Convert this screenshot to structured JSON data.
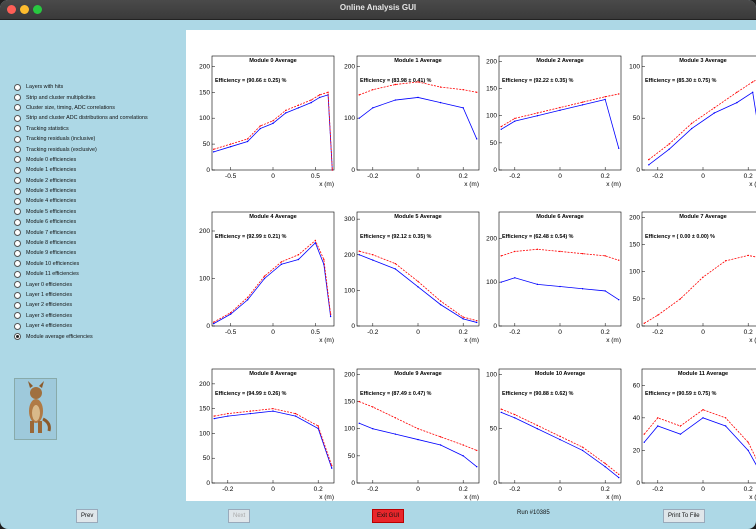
{
  "window": {
    "title": "Online Analysis GUI"
  },
  "sidebar": {
    "items": [
      {
        "label": "Layers with hits",
        "selected": false
      },
      {
        "label": "Strip and cluster multiplicities",
        "selected": false
      },
      {
        "label": "Cluster size, timing, ADC correlations",
        "selected": false
      },
      {
        "label": "Strip and cluster ADC distributions and correlations",
        "selected": false
      },
      {
        "label": "Tracking statistics",
        "selected": false
      },
      {
        "label": "Tracking residuals (inclusive)",
        "selected": false
      },
      {
        "label": "Tracking residuals (exclusive)",
        "selected": false
      },
      {
        "label": "Module 0 efficiencies",
        "selected": false
      },
      {
        "label": "Module 1 efficiencies",
        "selected": false
      },
      {
        "label": "Module 2 efficiencies",
        "selected": false
      },
      {
        "label": "Module 3 efficiencies",
        "selected": false
      },
      {
        "label": "Module 4 efficiencies",
        "selected": false
      },
      {
        "label": "Module 5 efficiencies",
        "selected": false
      },
      {
        "label": "Module 6 efficiencies",
        "selected": false
      },
      {
        "label": "Module 7 efficiencies",
        "selected": false
      },
      {
        "label": "Module 8 efficiencies",
        "selected": false
      },
      {
        "label": "Module 9 efficiencies",
        "selected": false
      },
      {
        "label": "Module 10 efficiencies",
        "selected": false
      },
      {
        "label": "Module 11 efficiencies",
        "selected": false
      },
      {
        "label": "Layer 0 efficiencies",
        "selected": false
      },
      {
        "label": "Layer 1 efficiencies",
        "selected": false
      },
      {
        "label": "Layer 2 efficiencies",
        "selected": false
      },
      {
        "label": "Layer 3 efficiencies",
        "selected": false
      },
      {
        "label": "Layer 4 efficiencies",
        "selected": false
      },
      {
        "label": "Module average efficiencies",
        "selected": true
      }
    ]
  },
  "buttons": {
    "prev": "Prev",
    "next": "Next",
    "exit": "Exit GUI",
    "print": "Print To File"
  },
  "status": {
    "run": "Run #10385"
  },
  "colors": {
    "blue_series": "#0000ff",
    "red_series": "#ff0000",
    "exit_button": "#e8262b"
  },
  "chart_data": [
    {
      "type": "line",
      "title": "Module 0 Average",
      "annotation": "Efficiency = (90.66 ± 0.25) %",
      "xlabel": "x (m)",
      "xlim": [
        -0.72,
        0.72
      ],
      "ylim": [
        0,
        220
      ],
      "xticks": [
        -0.5,
        0,
        0.5
      ],
      "yticks": [
        0,
        50,
        100,
        150,
        200
      ],
      "series": [
        {
          "color": "#0000ff",
          "x": [
            -0.7,
            -0.5,
            -0.3,
            -0.15,
            0,
            0.15,
            0.3,
            0.45,
            0.55,
            0.65,
            0.7
          ],
          "y": [
            35,
            45,
            55,
            80,
            90,
            110,
            120,
            130,
            140,
            145,
            0
          ]
        },
        {
          "color": "#ff0000",
          "x": [
            -0.7,
            -0.5,
            -0.3,
            -0.15,
            0,
            0.15,
            0.3,
            0.45,
            0.55,
            0.65,
            0.7
          ],
          "y": [
            40,
            50,
            60,
            85,
            95,
            115,
            125,
            135,
            145,
            150,
            0
          ]
        }
      ]
    },
    {
      "type": "line",
      "title": "Module 1 Average",
      "annotation": "Efficiency = (83.98 ± 0.41) %",
      "xlabel": "x (m)",
      "xlim": [
        -0.27,
        0.27
      ],
      "ylim": [
        0,
        220
      ],
      "xticks": [
        -0.2,
        0,
        0.2
      ],
      "yticks": [
        0,
        100,
        200
      ],
      "series": [
        {
          "color": "#0000ff",
          "x": [
            -0.26,
            -0.2,
            -0.1,
            0,
            0.1,
            0.2,
            0.26
          ],
          "y": [
            100,
            120,
            135,
            140,
            130,
            120,
            60
          ]
        },
        {
          "color": "#ff0000",
          "x": [
            -0.26,
            -0.2,
            -0.1,
            0,
            0.1,
            0.2,
            0.26
          ],
          "y": [
            145,
            155,
            165,
            170,
            160,
            155,
            150
          ]
        }
      ]
    },
    {
      "type": "line",
      "title": "Module 2 Average",
      "annotation": "Efficiency = (92.22 ± 0.35) %",
      "xlabel": "x (m)",
      "xlim": [
        -0.27,
        0.27
      ],
      "ylim": [
        0,
        210
      ],
      "xticks": [
        -0.2,
        0,
        0.2
      ],
      "yticks": [
        0,
        50,
        100,
        150,
        200
      ],
      "series": [
        {
          "color": "#0000ff",
          "x": [
            -0.26,
            -0.2,
            -0.1,
            0,
            0.1,
            0.2,
            0.26
          ],
          "y": [
            75,
            90,
            100,
            110,
            120,
            130,
            40
          ]
        },
        {
          "color": "#ff0000",
          "x": [
            -0.26,
            -0.2,
            -0.1,
            0,
            0.1,
            0.2,
            0.26
          ],
          "y": [
            80,
            95,
            105,
            115,
            125,
            135,
            140
          ]
        }
      ]
    },
    {
      "type": "line",
      "title": "Module 3 Average",
      "annotation": "Efficiency = (85.30 ± 0.75) %",
      "xlabel": "x (m)",
      "xlim": [
        -0.27,
        0.27
      ],
      "ylim": [
        0,
        110
      ],
      "xticks": [
        -0.2,
        0,
        0.2
      ],
      "yticks": [
        0,
        50,
        100
      ],
      "series": [
        {
          "color": "#0000ff",
          "x": [
            -0.24,
            -0.15,
            -0.05,
            0.05,
            0.15,
            0.22,
            0.26
          ],
          "y": [
            5,
            20,
            40,
            55,
            65,
            75,
            20
          ]
        },
        {
          "color": "#ff0000",
          "x": [
            -0.24,
            -0.15,
            -0.05,
            0.05,
            0.15,
            0.22,
            0.26
          ],
          "y": [
            10,
            25,
            45,
            60,
            75,
            85,
            90
          ]
        }
      ]
    },
    {
      "type": "line",
      "title": "Module 4 Average",
      "annotation": "Efficiency = (92.99 ± 0.21) %",
      "xlabel": "x (m)",
      "xlim": [
        -0.72,
        0.72
      ],
      "ylim": [
        0,
        240
      ],
      "xticks": [
        -0.5,
        0,
        0.5
      ],
      "yticks": [
        0,
        100,
        200
      ],
      "series": [
        {
          "color": "#0000ff",
          "x": [
            -0.7,
            -0.5,
            -0.3,
            -0.1,
            0.1,
            0.3,
            0.5,
            0.6,
            0.68
          ],
          "y": [
            5,
            25,
            55,
            100,
            130,
            140,
            175,
            130,
            20
          ]
        },
        {
          "color": "#ff0000",
          "x": [
            -0.7,
            -0.5,
            -0.3,
            -0.1,
            0.1,
            0.3,
            0.5,
            0.6,
            0.68
          ],
          "y": [
            8,
            28,
            60,
            105,
            135,
            150,
            180,
            140,
            25
          ]
        }
      ]
    },
    {
      "type": "line",
      "title": "Module 5 Average",
      "annotation": "Efficiency = (92.12 ± 0.35) %",
      "xlabel": "x (m)",
      "xlim": [
        -0.27,
        0.27
      ],
      "ylim": [
        0,
        320
      ],
      "xticks": [
        -0.2,
        0,
        0.2
      ],
      "yticks": [
        0,
        100,
        200,
        300
      ],
      "series": [
        {
          "color": "#0000ff",
          "x": [
            -0.26,
            -0.2,
            -0.1,
            0,
            0.1,
            0.2,
            0.26
          ],
          "y": [
            200,
            185,
            160,
            110,
            60,
            20,
            10
          ]
        },
        {
          "color": "#ff0000",
          "x": [
            -0.26,
            -0.2,
            -0.1,
            0,
            0.1,
            0.2,
            0.26
          ],
          "y": [
            210,
            200,
            175,
            125,
            70,
            25,
            15
          ]
        }
      ]
    },
    {
      "type": "line",
      "title": "Module 6 Average",
      "annotation": "Efficiency = (62.48 ± 0.54) %",
      "xlabel": "x (m)",
      "xlim": [
        -0.27,
        0.27
      ],
      "ylim": [
        0,
        260
      ],
      "xticks": [
        -0.2,
        0,
        0.2
      ],
      "yticks": [
        0,
        100,
        200
      ],
      "series": [
        {
          "color": "#0000ff",
          "x": [
            -0.26,
            -0.2,
            -0.1,
            0,
            0.1,
            0.2,
            0.26
          ],
          "y": [
            100,
            110,
            95,
            90,
            85,
            80,
            60
          ]
        },
        {
          "color": "#ff0000",
          "x": [
            -0.26,
            -0.2,
            -0.1,
            0,
            0.1,
            0.2,
            0.26
          ],
          "y": [
            160,
            170,
            175,
            170,
            165,
            160,
            150
          ]
        }
      ]
    },
    {
      "type": "line",
      "title": "Module 7 Average",
      "annotation": "Efficiency = ( 0.00 ± 0.00) %",
      "xlabel": "x (m)",
      "xlim": [
        -0.27,
        0.27
      ],
      "ylim": [
        0,
        210
      ],
      "xticks": [
        -0.2,
        0,
        0.2
      ],
      "yticks": [
        0,
        50,
        100,
        150,
        200
      ],
      "series": [
        {
          "color": "#ff0000",
          "x": [
            -0.26,
            -0.2,
            -0.1,
            0,
            0.1,
            0.2,
            0.26
          ],
          "y": [
            5,
            20,
            50,
            90,
            120,
            130,
            125
          ]
        }
      ]
    },
    {
      "type": "line",
      "title": "Module 8 Average",
      "annotation": "Efficiency = (94.99 ± 0.26) %",
      "xlabel": "x (m)",
      "xlim": [
        -0.27,
        0.27
      ],
      "ylim": [
        0,
        230
      ],
      "xticks": [
        -0.2,
        0,
        0.2
      ],
      "yticks": [
        0,
        50,
        100,
        150,
        200
      ],
      "series": [
        {
          "color": "#0000ff",
          "x": [
            -0.26,
            -0.2,
            -0.1,
            0,
            0.1,
            0.2,
            0.26
          ],
          "y": [
            130,
            135,
            140,
            145,
            135,
            110,
            30
          ]
        },
        {
          "color": "#ff0000",
          "x": [
            -0.26,
            -0.2,
            -0.1,
            0,
            0.1,
            0.2,
            0.26
          ],
          "y": [
            135,
            140,
            145,
            150,
            140,
            115,
            35
          ]
        }
      ]
    },
    {
      "type": "line",
      "title": "Module 9 Average",
      "annotation": "Efficiency = (87.49 ± 0.47) %",
      "xlabel": "x (m)",
      "xlim": [
        -0.27,
        0.27
      ],
      "ylim": [
        0,
        210
      ],
      "xticks": [
        -0.2,
        0,
        0.2
      ],
      "yticks": [
        0,
        50,
        100,
        150,
        200
      ],
      "series": [
        {
          "color": "#0000ff",
          "x": [
            -0.26,
            -0.2,
            -0.1,
            0,
            0.1,
            0.2,
            0.26
          ],
          "y": [
            110,
            100,
            90,
            80,
            70,
            50,
            30
          ]
        },
        {
          "color": "#ff0000",
          "x": [
            -0.26,
            -0.2,
            -0.1,
            0,
            0.1,
            0.2,
            0.26
          ],
          "y": [
            150,
            140,
            120,
            100,
            85,
            70,
            60
          ]
        }
      ]
    },
    {
      "type": "line",
      "title": "Module 10 Average",
      "annotation": "Efficiency = (90.88 ± 0.62) %",
      "xlabel": "x (m)",
      "xlim": [
        -0.27,
        0.27
      ],
      "ylim": [
        0,
        105
      ],
      "xticks": [
        -0.2,
        0,
        0.2
      ],
      "yticks": [
        0,
        50,
        100
      ],
      "series": [
        {
          "color": "#0000ff",
          "x": [
            -0.26,
            -0.2,
            -0.1,
            0,
            0.1,
            0.2,
            0.26
          ],
          "y": [
            65,
            60,
            50,
            40,
            30,
            15,
            5
          ]
        },
        {
          "color": "#ff0000",
          "x": [
            -0.26,
            -0.2,
            -0.1,
            0,
            0.1,
            0.2,
            0.26
          ],
          "y": [
            68,
            63,
            53,
            43,
            33,
            18,
            8
          ]
        }
      ]
    },
    {
      "type": "line",
      "title": "Module 11 Average",
      "annotation": "Efficiency = (90.59 ± 0.75) %",
      "xlabel": "x (m)",
      "xlim": [
        -0.27,
        0.27
      ],
      "ylim": [
        0,
        70
      ],
      "xticks": [
        -0.2,
        0,
        0.2
      ],
      "yticks": [
        0,
        20,
        40,
        60
      ],
      "series": [
        {
          "color": "#0000ff",
          "x": [
            -0.26,
            -0.2,
            -0.1,
            0,
            0.1,
            0.2,
            0.26
          ],
          "y": [
            25,
            35,
            30,
            40,
            35,
            20,
            5
          ]
        },
        {
          "color": "#ff0000",
          "x": [
            -0.26,
            -0.2,
            -0.1,
            0,
            0.1,
            0.2,
            0.26
          ],
          "y": [
            30,
            40,
            35,
            45,
            40,
            25,
            8
          ]
        }
      ]
    }
  ]
}
